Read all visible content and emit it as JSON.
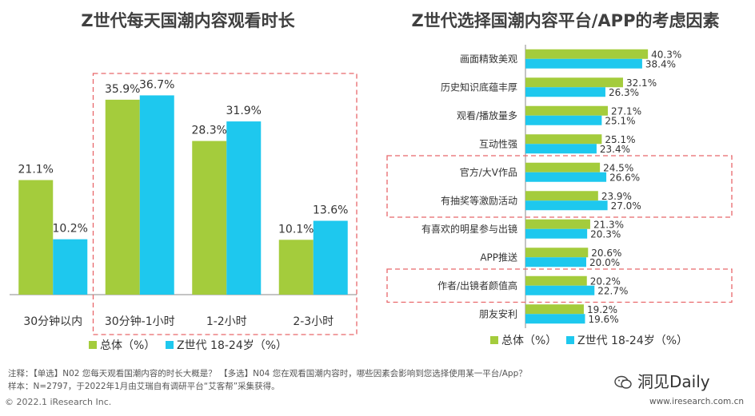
{
  "colors": {
    "total": "#a4cc3c",
    "gen_z": "#1ec8ee",
    "highlight": "#e8676b",
    "axis": "#888888"
  },
  "legend": {
    "total": "总体（%）",
    "gen_z": "Z世代 18-24岁（%）"
  },
  "chart_data": [
    {
      "type": "bar",
      "title": "Z世代每天国潮内容观看时长",
      "categories": [
        "30分钟以内",
        "30分钟-1小时",
        "1-2小时",
        "2-3小时"
      ],
      "series": [
        {
          "name": "总体（%）",
          "values": [
            21.1,
            35.9,
            28.3,
            10.1
          ]
        },
        {
          "name": "Z世代 18-24岁（%）",
          "values": [
            10.2,
            36.7,
            31.9,
            13.6
          ]
        }
      ],
      "value_labels": [
        [
          "21.1%",
          "35.9%",
          "28.3%",
          "10.1%"
        ],
        [
          "10.2%",
          "36.7%",
          "31.9%",
          "13.6%"
        ]
      ],
      "highlighted_categories": [
        "30分钟-1小时",
        "1-2小时",
        "2-3小时"
      ],
      "ylim": [
        0,
        40
      ]
    },
    {
      "type": "bar",
      "orientation": "horizontal",
      "title": "Z世代选择国潮内容平台/APP的考虑因素",
      "categories": [
        "画面精致美观",
        "历史知识底蕴丰厚",
        "观看/播放量多",
        "互动性强",
        "官方/大V作品",
        "有抽奖等激励活动",
        "有喜欢的明星参与出镜",
        "APP推送",
        "作者/出镜者颜值高",
        "朋友安利"
      ],
      "series": [
        {
          "name": "总体（%）",
          "values": [
            40.3,
            32.1,
            27.1,
            25.1,
            24.5,
            23.9,
            21.3,
            20.6,
            20.2,
            19.2
          ]
        },
        {
          "name": "Z世代 18-24岁（%）",
          "values": [
            38.4,
            26.3,
            25.1,
            23.4,
            26.6,
            27.0,
            20.3,
            20.0,
            22.7,
            19.6
          ]
        }
      ],
      "value_labels": [
        [
          "40.3%",
          "32.1%",
          "27.1%",
          "25.1%",
          "24.5%",
          "23.9%",
          "21.3%",
          "20.6%",
          "20.2%",
          "19.2%"
        ],
        [
          "38.4%",
          "26.3%",
          "25.1%",
          "23.4%",
          "26.6%",
          "27.0%",
          "20.3%",
          "20.0%",
          "22.7%",
          "19.6%"
        ]
      ],
      "highlighted_categories": [
        "官方/大V作品",
        "有抽奖等激励活动",
        "作者/出镜者颜值高"
      ],
      "xlim": [
        0,
        45
      ]
    }
  ],
  "footer": {
    "note1": "注释：【单选】N02 您每天观看国潮内容的时长大概是？ 【多选】N04 您在观看国潮内容时，哪些因素会影响到您选择使用某一平台/App？",
    "note2": "样本：N=2797，于2022年1月由艾瑞自有调研平台“艾客帮”采集获得。",
    "copyright": "© 2022.1 iResearch Inc.",
    "brand": "洞见Daily",
    "website": "www.iresearch.com.cn"
  }
}
